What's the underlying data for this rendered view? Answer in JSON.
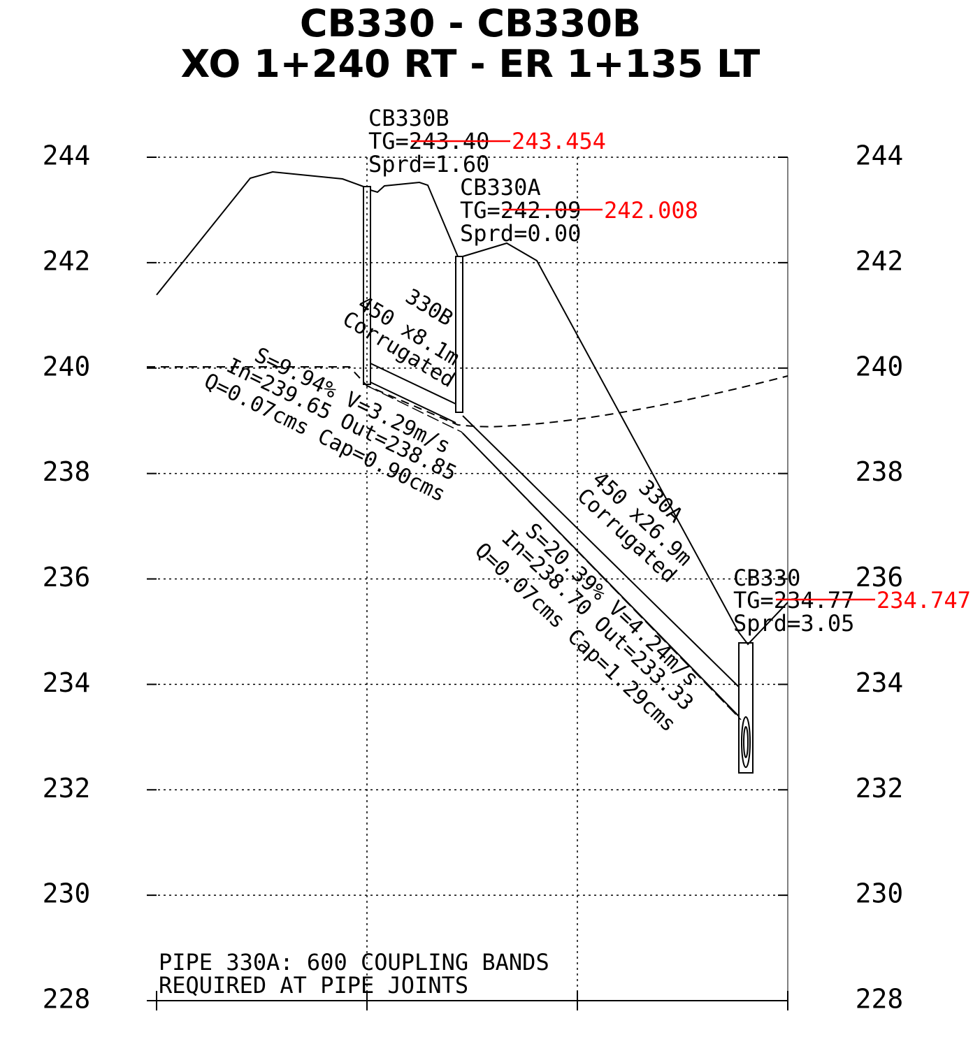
{
  "title": {
    "line1": "CB330 - CB330B",
    "line2": "XO 1+240 RT - ER 1+135 LT"
  },
  "axis": {
    "ticks": [
      244,
      242,
      240,
      238,
      236,
      234,
      232,
      230,
      228
    ]
  },
  "structures": [
    {
      "name": "CB330B",
      "tg": "TG=243.40",
      "tg_revised": "243.454",
      "spread": "Sprd=1.60"
    },
    {
      "name": "CB330A",
      "tg": "TG=242.09",
      "tg_revised": "242.008",
      "spread": "Sprd=0.00"
    },
    {
      "name": "CB330",
      "tg": "TG=234.77",
      "tg_revised": "234.747",
      "spread": "Sprd=3.05"
    }
  ],
  "pipes": [
    {
      "id": "330B",
      "size": "450 x8.1m",
      "material": "Corrugated",
      "slope": "S=9.94% V=3.29m/s",
      "inverts": "In=239.65 Out=238.85",
      "flow": "Q=0.07cms Cap=0.90cms"
    },
    {
      "id": "330A",
      "size": "450 x26.9m",
      "material": "Corrugated",
      "slope": "S=20.39% V=4.24m/s",
      "inverts": "In=238.70 Out=233.33",
      "flow": "Q=0.07cms Cap=1.29cms"
    }
  ],
  "note": {
    "line1": "PIPE 330A: 600  COUPLING BANDS",
    "line2": "REQUIRED AT PIPE JOINTS"
  }
}
